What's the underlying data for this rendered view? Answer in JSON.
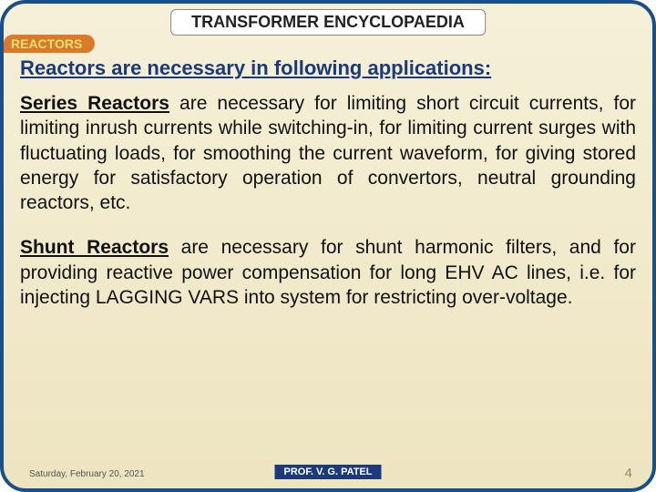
{
  "title": "TRANSFORMER ENCYCLOPAEDIA",
  "section": "REACTORS",
  "heading": "Reactors are necessary in following applications:",
  "para1_lead": "Series Reactors",
  "para1_rest": " are necessary for limiting short circuit currents, for limiting inrush currents while switching-in, for limiting current surges with fluctuating loads, for smoothing the current waveform, for giving stored energy for satisfactory operation of convertors, neutral grounding reactors, etc.",
  "para2_lead": "Shunt Reactors",
  "para2_rest": " are necessary for shunt harmonic filters, and for providing reactive power compensation for long EHV AC lines, i.e. for injecting LAGGING VARS into system for restricting over-voltage.",
  "footer": {
    "date": "Saturday, February 20, 2021",
    "prof": "PROF. V. G. PATEL",
    "page": "4"
  },
  "colors": {
    "border": "#1a4f8a",
    "bg_top": "#f5f0d8",
    "bg_bottom": "#ede4c0",
    "section_bg": "#d87a2a",
    "section_fg": "#e8e070",
    "heading": "#1a3a7a",
    "prof_bg": "#1a3a7a",
    "page_color": "#9a8a5a"
  }
}
